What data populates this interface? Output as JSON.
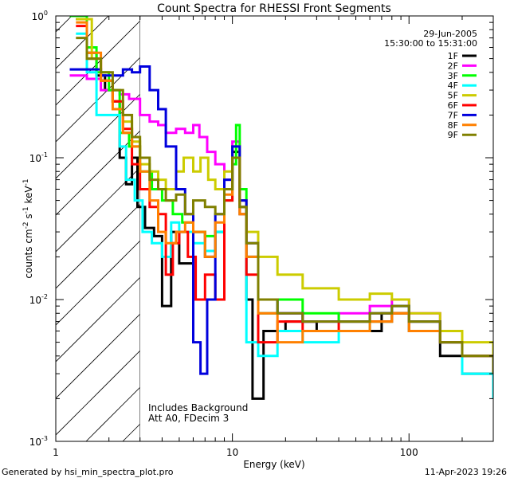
{
  "chart_data": {
    "type": "line",
    "title": "Count Spectra for RHESSI Front Segments",
    "xlabel": "Energy (keV)",
    "ylabel_main": "counts cm",
    "ylabel_sup1": "-2",
    "ylabel_mid": " s",
    "ylabel_sup2": "-1",
    "ylabel_end": " keV",
    "ylabel_sup3": "-1",
    "x_scale": "log",
    "y_scale": "log",
    "xlim": [
      1,
      300
    ],
    "ylim": [
      0.001,
      1
    ],
    "x_ticks": [
      {
        "value": 1,
        "label": "1"
      },
      {
        "value": 10,
        "label": "10"
      },
      {
        "value": 100,
        "label": "100"
      }
    ],
    "y_ticks": [
      {
        "value": 1,
        "base": "10",
        "exp": "0"
      },
      {
        "value": 0.1,
        "base": "10",
        "exp": "-1"
      },
      {
        "value": 0.01,
        "base": "10",
        "exp": "-2"
      },
      {
        "value": 0.001,
        "base": "10",
        "exp": "-3"
      }
    ],
    "hatched_region": {
      "x_from": 1,
      "x_to": 3
    },
    "date": "29-Jun-2005",
    "time_range": "15:30:00 to 15:31:00",
    "annotation_lines": [
      "Includes Background",
      "Att A0, FDecim 3"
    ],
    "legend_position": "top-right",
    "series": [
      {
        "name": "1F",
        "color": "#000000",
        "values": [
          [
            1.3,
            0.95
          ],
          [
            1.5,
            0.55
          ],
          [
            1.7,
            0.38
          ],
          [
            1.9,
            0.3
          ],
          [
            2.1,
            0.25
          ],
          [
            2.3,
            0.1
          ],
          [
            2.5,
            0.065
          ],
          [
            2.7,
            0.1
          ],
          [
            2.9,
            0.045
          ],
          [
            3.2,
            0.032
          ],
          [
            3.6,
            0.028
          ],
          [
            4.0,
            0.009
          ],
          [
            4.5,
            0.03
          ],
          [
            5.0,
            0.018
          ],
          [
            6.0,
            0.03
          ],
          [
            7.0,
            0.02
          ],
          [
            8.0,
            0.03
          ],
          [
            9.0,
            0.06
          ],
          [
            10.0,
            0.11
          ],
          [
            11.0,
            0.045
          ],
          [
            12.0,
            0.01
          ],
          [
            13.0,
            0.002
          ],
          [
            15.0,
            0.006
          ],
          [
            20.0,
            0.007
          ],
          [
            30.0,
            0.006
          ],
          [
            50.0,
            0.006
          ],
          [
            70.0,
            0.008
          ],
          [
            100.0,
            0.007
          ],
          [
            150.0,
            0.004
          ],
          [
            200.0,
            0.003
          ],
          [
            300.0,
            0.002
          ]
        ]
      },
      {
        "name": "2F",
        "color": "#ff00ff",
        "values": [
          [
            1.2,
            0.38
          ],
          [
            1.5,
            0.36
          ],
          [
            1.8,
            0.3
          ],
          [
            2.0,
            0.3
          ],
          [
            2.3,
            0.28
          ],
          [
            2.6,
            0.26
          ],
          [
            3.0,
            0.2
          ],
          [
            3.4,
            0.18
          ],
          [
            3.8,
            0.17
          ],
          [
            4.2,
            0.15
          ],
          [
            4.8,
            0.16
          ],
          [
            5.4,
            0.15
          ],
          [
            6.0,
            0.17
          ],
          [
            6.5,
            0.14
          ],
          [
            7.2,
            0.11
          ],
          [
            8.0,
            0.09
          ],
          [
            9.0,
            0.07
          ],
          [
            10.0,
            0.13
          ],
          [
            11.0,
            0.05
          ],
          [
            12.0,
            0.02
          ],
          [
            14.0,
            0.008
          ],
          [
            18.0,
            0.008
          ],
          [
            25.0,
            0.007
          ],
          [
            40.0,
            0.008
          ],
          [
            60.0,
            0.009
          ],
          [
            80.0,
            0.01
          ],
          [
            100.0,
            0.008
          ],
          [
            150.0,
            0.005
          ],
          [
            200.0,
            0.004
          ],
          [
            300.0,
            0.003
          ]
        ]
      },
      {
        "name": "3F",
        "color": "#00ff00",
        "values": [
          [
            1.2,
            1.0
          ],
          [
            1.5,
            0.6
          ],
          [
            1.7,
            0.4
          ],
          [
            2.0,
            0.3
          ],
          [
            2.3,
            0.15
          ],
          [
            2.6,
            0.12
          ],
          [
            3.0,
            0.08
          ],
          [
            3.5,
            0.06
          ],
          [
            4.0,
            0.05
          ],
          [
            4.6,
            0.04
          ],
          [
            5.2,
            0.035
          ],
          [
            6.0,
            0.03
          ],
          [
            7.0,
            0.028
          ],
          [
            8.0,
            0.03
          ],
          [
            9.0,
            0.05
          ],
          [
            10.0,
            0.09
          ],
          [
            10.5,
            0.17
          ],
          [
            11.0,
            0.06
          ],
          [
            12.0,
            0.02
          ],
          [
            14.0,
            0.008
          ],
          [
            18.0,
            0.01
          ],
          [
            25.0,
            0.008
          ],
          [
            40.0,
            0.007
          ],
          [
            60.0,
            0.007
          ],
          [
            80.0,
            0.008
          ],
          [
            100.0,
            0.006
          ],
          [
            150.0,
            0.005
          ],
          [
            200.0,
            0.004
          ],
          [
            300.0,
            0.003
          ]
        ]
      },
      {
        "name": "4F",
        "color": "#00ffff",
        "values": [
          [
            1.3,
            0.75
          ],
          [
            1.5,
            0.4
          ],
          [
            1.7,
            0.2
          ],
          [
            2.0,
            0.2
          ],
          [
            2.3,
            0.12
          ],
          [
            2.5,
            0.07
          ],
          [
            2.8,
            0.05
          ],
          [
            3.1,
            0.03
          ],
          [
            3.5,
            0.025
          ],
          [
            4.0,
            0.02
          ],
          [
            4.5,
            0.035
          ],
          [
            5.0,
            0.03
          ],
          [
            6.0,
            0.025
          ],
          [
            7.0,
            0.022
          ],
          [
            8.0,
            0.03
          ],
          [
            9.0,
            0.06
          ],
          [
            10.0,
            0.1
          ],
          [
            11.0,
            0.04
          ],
          [
            12.0,
            0.005
          ],
          [
            14.0,
            0.004
          ],
          [
            18.0,
            0.006
          ],
          [
            25.0,
            0.005
          ],
          [
            40.0,
            0.006
          ],
          [
            60.0,
            0.007
          ],
          [
            80.0,
            0.009
          ],
          [
            100.0,
            0.006
          ],
          [
            150.0,
            0.005
          ],
          [
            200.0,
            0.003
          ],
          [
            300.0,
            0.002
          ]
        ]
      },
      {
        "name": "5F",
        "color": "#cccc00",
        "values": [
          [
            1.3,
            0.95
          ],
          [
            1.6,
            0.5
          ],
          [
            1.8,
            0.35
          ],
          [
            2.1,
            0.25
          ],
          [
            2.4,
            0.18
          ],
          [
            2.7,
            0.13
          ],
          [
            3.0,
            0.09
          ],
          [
            3.4,
            0.08
          ],
          [
            3.8,
            0.07
          ],
          [
            4.2,
            0.06
          ],
          [
            4.8,
            0.08
          ],
          [
            5.3,
            0.1
          ],
          [
            6.0,
            0.08
          ],
          [
            6.6,
            0.1
          ],
          [
            7.3,
            0.07
          ],
          [
            8.0,
            0.06
          ],
          [
            9.0,
            0.08
          ],
          [
            10.0,
            0.12
          ],
          [
            11.0,
            0.05
          ],
          [
            12.0,
            0.03
          ],
          [
            14.0,
            0.02
          ],
          [
            18.0,
            0.015
          ],
          [
            25.0,
            0.012
          ],
          [
            40.0,
            0.01
          ],
          [
            60.0,
            0.011
          ],
          [
            80.0,
            0.01
          ],
          [
            100.0,
            0.008
          ],
          [
            150.0,
            0.006
          ],
          [
            200.0,
            0.005
          ],
          [
            300.0,
            0.004
          ]
        ]
      },
      {
        "name": "6F",
        "color": "#ff0000",
        "values": [
          [
            1.3,
            0.85
          ],
          [
            1.5,
            0.5
          ],
          [
            1.8,
            0.35
          ],
          [
            2.1,
            0.25
          ],
          [
            2.4,
            0.16
          ],
          [
            2.7,
            0.09
          ],
          [
            3.0,
            0.06
          ],
          [
            3.4,
            0.045
          ],
          [
            3.8,
            0.04
          ],
          [
            4.2,
            0.015
          ],
          [
            4.6,
            0.025
          ],
          [
            5.0,
            0.03
          ],
          [
            5.6,
            0.02
          ],
          [
            6.2,
            0.01
          ],
          [
            7.0,
            0.015
          ],
          [
            8.0,
            0.01
          ],
          [
            9.0,
            0.05
          ],
          [
            10.0,
            0.1
          ],
          [
            11.0,
            0.04
          ],
          [
            12.0,
            0.015
          ],
          [
            14.0,
            0.005
          ],
          [
            18.0,
            0.007
          ],
          [
            25.0,
            0.006
          ],
          [
            40.0,
            0.007
          ],
          [
            60.0,
            0.007
          ],
          [
            80.0,
            0.008
          ],
          [
            100.0,
            0.006
          ],
          [
            150.0,
            0.005
          ],
          [
            200.0,
            0.004
          ],
          [
            300.0,
            0.003
          ]
        ]
      },
      {
        "name": "7F",
        "color": "#0000dd",
        "values": [
          [
            1.2,
            0.42
          ],
          [
            1.5,
            0.42
          ],
          [
            1.8,
            0.38
          ],
          [
            2.1,
            0.38
          ],
          [
            2.4,
            0.42
          ],
          [
            2.7,
            0.4
          ],
          [
            3.0,
            0.44
          ],
          [
            3.4,
            0.3
          ],
          [
            3.8,
            0.22
          ],
          [
            4.2,
            0.12
          ],
          [
            4.8,
            0.06
          ],
          [
            5.4,
            0.04
          ],
          [
            6.0,
            0.005
          ],
          [
            6.6,
            0.003
          ],
          [
            7.2,
            0.01
          ],
          [
            8.0,
            0.04
          ],
          [
            9.0,
            0.07
          ],
          [
            10.0,
            0.12
          ],
          [
            11.0,
            0.05
          ],
          [
            12.0,
            0.025
          ],
          [
            14.0,
            0.01
          ],
          [
            18.0,
            0.008
          ],
          [
            25.0,
            0.007
          ],
          [
            40.0,
            0.007
          ],
          [
            60.0,
            0.008
          ],
          [
            80.0,
            0.009
          ],
          [
            100.0,
            0.007
          ],
          [
            150.0,
            0.005
          ],
          [
            200.0,
            0.004
          ],
          [
            300.0,
            0.003
          ]
        ]
      },
      {
        "name": "8F",
        "color": "#ff8000",
        "values": [
          [
            1.3,
            0.9
          ],
          [
            1.5,
            0.55
          ],
          [
            1.8,
            0.35
          ],
          [
            2.1,
            0.22
          ],
          [
            2.4,
            0.15
          ],
          [
            2.7,
            0.12
          ],
          [
            3.0,
            0.08
          ],
          [
            3.4,
            0.05
          ],
          [
            3.8,
            0.03
          ],
          [
            4.2,
            0.025
          ],
          [
            4.8,
            0.03
          ],
          [
            5.4,
            0.035
          ],
          [
            6.0,
            0.03
          ],
          [
            7.0,
            0.02
          ],
          [
            8.0,
            0.035
          ],
          [
            9.0,
            0.055
          ],
          [
            10.0,
            0.1
          ],
          [
            11.0,
            0.04
          ],
          [
            12.0,
            0.02
          ],
          [
            14.0,
            0.008
          ],
          [
            18.0,
            0.005
          ],
          [
            25.0,
            0.006
          ],
          [
            40.0,
            0.006
          ],
          [
            60.0,
            0.007
          ],
          [
            80.0,
            0.008
          ],
          [
            100.0,
            0.006
          ],
          [
            150.0,
            0.005
          ],
          [
            200.0,
            0.004
          ],
          [
            300.0,
            0.003
          ]
        ]
      },
      {
        "name": "9F",
        "color": "#808000",
        "values": [
          [
            1.3,
            0.7
          ],
          [
            1.5,
            0.5
          ],
          [
            1.8,
            0.4
          ],
          [
            2.1,
            0.3
          ],
          [
            2.4,
            0.2
          ],
          [
            2.7,
            0.14
          ],
          [
            3.0,
            0.1
          ],
          [
            3.4,
            0.07
          ],
          [
            3.8,
            0.06
          ],
          [
            4.2,
            0.05
          ],
          [
            4.8,
            0.055
          ],
          [
            5.4,
            0.04
          ],
          [
            6.0,
            0.05
          ],
          [
            7.0,
            0.045
          ],
          [
            8.0,
            0.04
          ],
          [
            9.0,
            0.06
          ],
          [
            10.0,
            0.1
          ],
          [
            11.0,
            0.045
          ],
          [
            12.0,
            0.025
          ],
          [
            14.0,
            0.01
          ],
          [
            18.0,
            0.008
          ],
          [
            25.0,
            0.007
          ],
          [
            40.0,
            0.007
          ],
          [
            60.0,
            0.008
          ],
          [
            80.0,
            0.009
          ],
          [
            100.0,
            0.007
          ],
          [
            150.0,
            0.005
          ],
          [
            200.0,
            0.004
          ],
          [
            300.0,
            0.003
          ]
        ]
      }
    ]
  },
  "footer": {
    "generated_by": "Generated by hsi_min_spectra_plot.pro",
    "timestamp": "11-Apr-2023 19:26"
  }
}
